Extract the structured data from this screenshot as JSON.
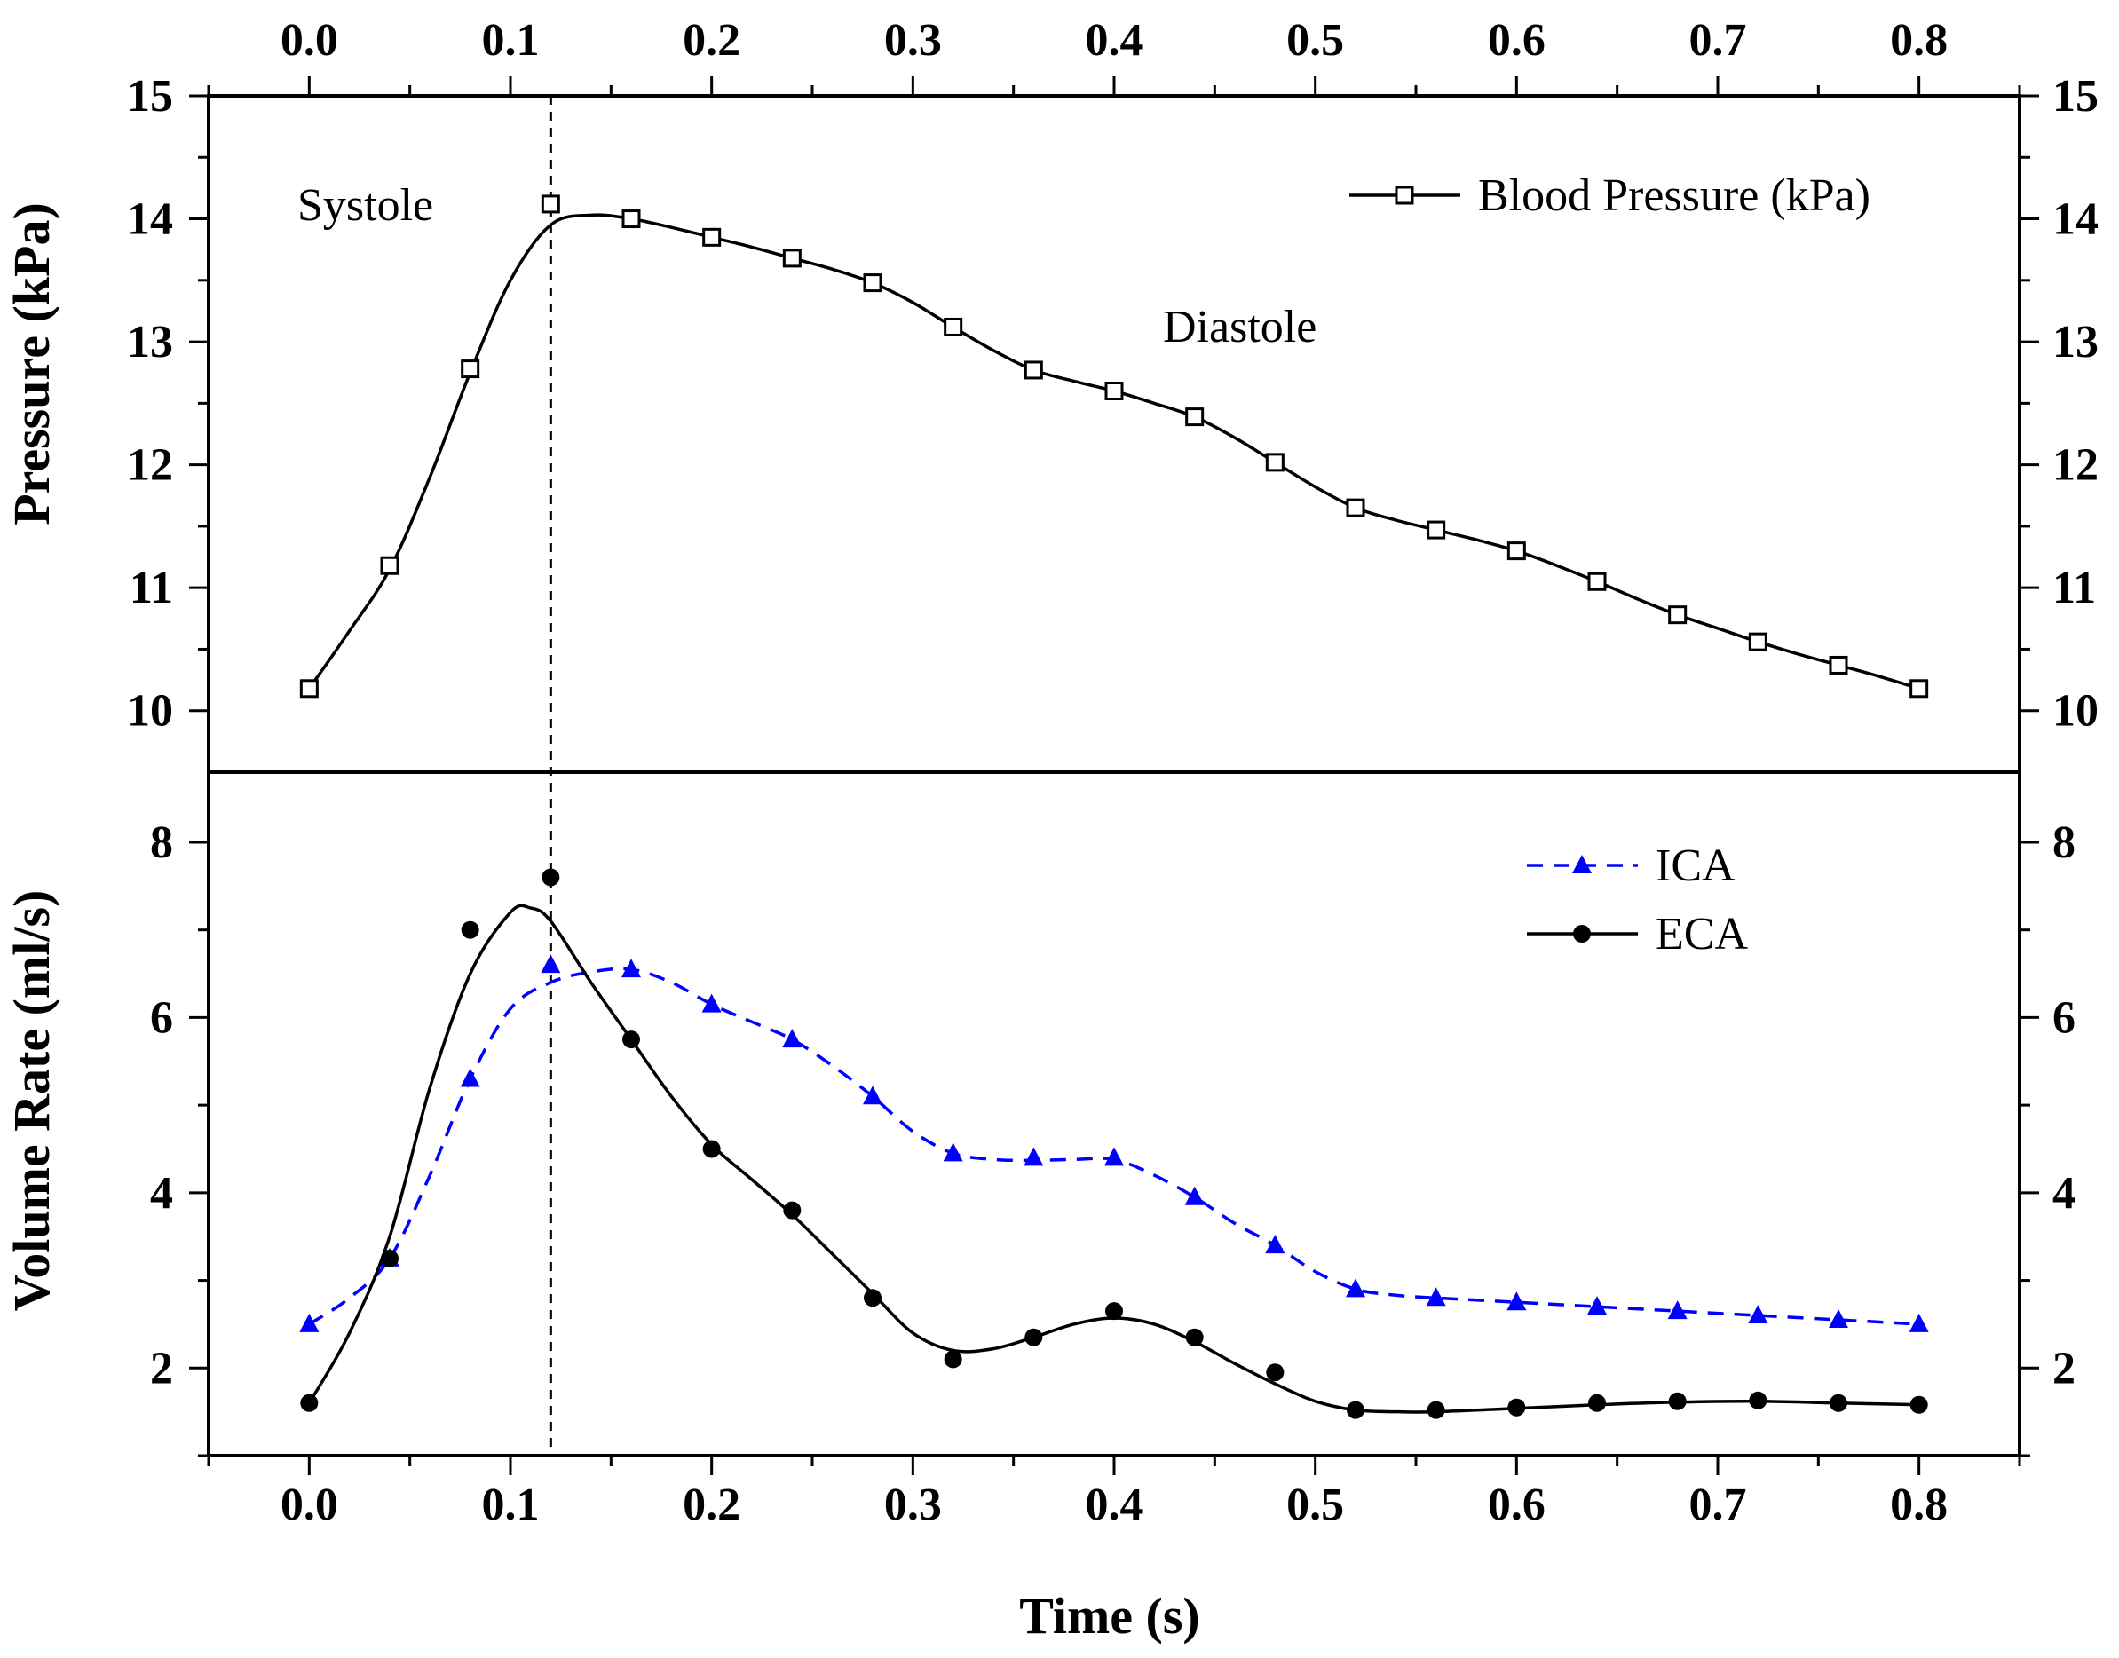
{
  "chart_data": [
    {
      "type": "line",
      "panel": "top",
      "ylabel": "Pressure (kPa)",
      "xlabel": "",
      "ylim": [
        9.5,
        15
      ],
      "xlim": [
        -0.05,
        0.85
      ],
      "yticks": [
        10,
        11,
        12,
        13,
        14,
        15
      ],
      "ytick_labels": [
        "10",
        "11",
        "12",
        "13",
        "14",
        "15"
      ],
      "xticks": [
        0.0,
        0.1,
        0.2,
        0.3,
        0.4,
        0.5,
        0.6,
        0.7,
        0.8
      ],
      "xtick_labels": [
        "0.0",
        "0.1",
        "0.2",
        "0.3",
        "0.4",
        "0.5",
        "0.6",
        "0.7",
        "0.8"
      ],
      "legend_position": "top-right",
      "annotations": [
        "Systole",
        "Diastole"
      ],
      "series": [
        {
          "name": "Blood Pressure (kPa)",
          "marker": "open-square",
          "line": "solid",
          "color": "#000000",
          "x": [
            0.0,
            0.04,
            0.08,
            0.12,
            0.16,
            0.2,
            0.24,
            0.28,
            0.32,
            0.36,
            0.4,
            0.44,
            0.48,
            0.52,
            0.56,
            0.6,
            0.64,
            0.68,
            0.72,
            0.76,
            0.8
          ],
          "y": [
            10.18,
            11.18,
            12.78,
            14.12,
            14.0,
            13.85,
            13.68,
            13.48,
            13.12,
            12.77,
            12.6,
            12.39,
            12.02,
            11.65,
            11.47,
            11.3,
            11.05,
            10.78,
            10.56,
            10.37,
            10.18
          ],
          "curve_x": [
            0.0,
            0.02,
            0.04,
            0.06,
            0.08,
            0.1,
            0.12,
            0.14,
            0.16,
            0.18,
            0.2,
            0.22,
            0.24,
            0.26,
            0.28,
            0.3,
            0.32,
            0.34,
            0.36,
            0.38,
            0.4,
            0.42,
            0.44,
            0.46,
            0.48,
            0.5,
            0.52,
            0.54,
            0.56,
            0.58,
            0.6,
            0.62,
            0.64,
            0.66,
            0.68,
            0.7,
            0.72,
            0.74,
            0.76,
            0.78,
            0.8
          ],
          "curve_y": [
            10.18,
            10.65,
            11.15,
            11.9,
            12.75,
            13.5,
            13.95,
            14.03,
            14.0,
            13.93,
            13.85,
            13.77,
            13.68,
            13.59,
            13.48,
            13.32,
            13.12,
            12.93,
            12.77,
            12.68,
            12.6,
            12.5,
            12.39,
            12.22,
            12.02,
            11.82,
            11.65,
            11.55,
            11.47,
            11.39,
            11.3,
            11.18,
            11.05,
            10.91,
            10.78,
            10.67,
            10.56,
            10.46,
            10.37,
            10.28,
            10.18
          ]
        }
      ]
    },
    {
      "type": "line",
      "panel": "bottom",
      "ylabel": "Volume Rate (ml/s)",
      "xlabel": "Time (s)",
      "ylim": [
        1,
        8.8
      ],
      "xlim": [
        -0.05,
        0.85
      ],
      "yticks": [
        2,
        4,
        6,
        8
      ],
      "ytick_labels": [
        "2",
        "4",
        "6",
        "8"
      ],
      "xticks": [
        0.0,
        0.1,
        0.2,
        0.3,
        0.4,
        0.5,
        0.6,
        0.7,
        0.8
      ],
      "xtick_labels": [
        "0.0",
        "0.1",
        "0.2",
        "0.3",
        "0.4",
        "0.5",
        "0.6",
        "0.7",
        "0.8"
      ],
      "legend_position": "top-right",
      "series": [
        {
          "name": "ICA",
          "marker": "filled-triangle",
          "line": "dashed",
          "color": "#0000ff",
          "x": [
            0.0,
            0.04,
            0.08,
            0.12,
            0.16,
            0.2,
            0.24,
            0.28,
            0.32,
            0.36,
            0.4,
            0.44,
            0.48,
            0.52,
            0.56,
            0.6,
            0.64,
            0.68,
            0.72,
            0.76,
            0.8
          ],
          "y": [
            2.5,
            3.25,
            5.3,
            6.6,
            6.55,
            6.15,
            5.75,
            5.1,
            4.45,
            4.4,
            4.4,
            3.95,
            3.4,
            2.9,
            2.8,
            2.75,
            2.7,
            2.65,
            2.6,
            2.55,
            2.5
          ],
          "curve_x": [
            0.0,
            0.02,
            0.04,
            0.06,
            0.08,
            0.1,
            0.12,
            0.14,
            0.16,
            0.18,
            0.2,
            0.22,
            0.24,
            0.26,
            0.28,
            0.3,
            0.32,
            0.34,
            0.36,
            0.38,
            0.4,
            0.42,
            0.44,
            0.46,
            0.48,
            0.5,
            0.52,
            0.54,
            0.56,
            0.6,
            0.64,
            0.68,
            0.72,
            0.76,
            0.8
          ],
          "curve_y": [
            2.5,
            2.8,
            3.25,
            4.2,
            5.3,
            6.1,
            6.4,
            6.52,
            6.55,
            6.4,
            6.15,
            5.95,
            5.75,
            5.45,
            5.1,
            4.7,
            4.45,
            4.38,
            4.37,
            4.38,
            4.38,
            4.2,
            3.95,
            3.65,
            3.4,
            3.1,
            2.9,
            2.83,
            2.8,
            2.75,
            2.7,
            2.65,
            2.6,
            2.55,
            2.5
          ]
        },
        {
          "name": "ECA",
          "marker": "filled-circle",
          "line": "solid",
          "color": "#000000",
          "x": [
            0.0,
            0.04,
            0.08,
            0.12,
            0.16,
            0.2,
            0.24,
            0.28,
            0.32,
            0.36,
            0.4,
            0.44,
            0.48,
            0.52,
            0.56,
            0.6,
            0.64,
            0.68,
            0.72,
            0.76,
            0.8
          ],
          "y": [
            1.6,
            3.25,
            7.0,
            7.6,
            5.75,
            4.5,
            3.8,
            2.8,
            2.1,
            2.35,
            2.65,
            2.35,
            1.95,
            1.52,
            1.52,
            1.55,
            1.6,
            1.62,
            1.63,
            1.6,
            1.58
          ],
          "curve_x": [
            0.0,
            0.02,
            0.04,
            0.06,
            0.08,
            0.1,
            0.11,
            0.12,
            0.14,
            0.16,
            0.18,
            0.2,
            0.22,
            0.24,
            0.26,
            0.28,
            0.3,
            0.32,
            0.34,
            0.36,
            0.38,
            0.4,
            0.42,
            0.44,
            0.46,
            0.48,
            0.5,
            0.52,
            0.54,
            0.56,
            0.6,
            0.64,
            0.68,
            0.72,
            0.76,
            0.8
          ],
          "curve_y": [
            1.6,
            2.4,
            3.5,
            5.2,
            6.5,
            7.2,
            7.25,
            7.1,
            6.4,
            5.75,
            5.1,
            4.55,
            4.15,
            3.75,
            3.3,
            2.85,
            2.4,
            2.2,
            2.22,
            2.35,
            2.5,
            2.57,
            2.5,
            2.3,
            2.05,
            1.82,
            1.62,
            1.52,
            1.5,
            1.5,
            1.54,
            1.58,
            1.61,
            1.62,
            1.6,
            1.58
          ]
        }
      ],
      "reference_line": {
        "x": 0.12,
        "style": "dashed",
        "spans": "both-panels"
      }
    }
  ]
}
